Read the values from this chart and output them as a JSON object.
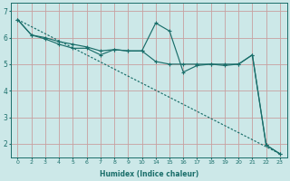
{
  "bg_color": "#cce8e8",
  "line_color": "#1a6e6a",
  "grid_color": "#c8a0a0",
  "xlabel": "Humidex (Indice chaleur)",
  "ylabel_ticks": [
    2,
    3,
    4,
    5,
    6,
    7
  ],
  "xtick_labels": [
    "0",
    "2",
    "3",
    "4",
    "5",
    "6",
    "7",
    "8",
    "9",
    "10",
    "14",
    "15",
    "16",
    "17",
    "18",
    "19",
    "20",
    "21",
    "22",
    "23"
  ],
  "xlim": [
    -0.5,
    19.5
  ],
  "ylim": [
    1.5,
    7.3
  ],
  "line1_x": [
    0,
    1,
    2,
    3,
    4,
    5,
    6,
    7,
    8,
    9,
    10,
    11,
    12,
    13,
    14,
    15,
    16,
    17,
    18,
    19
  ],
  "line1_y": [
    6.68,
    6.1,
    6.0,
    5.85,
    5.75,
    5.65,
    5.5,
    5.55,
    5.5,
    5.5,
    5.1,
    5.0,
    5.0,
    5.0,
    5.0,
    5.0,
    5.0,
    5.35,
    1.95,
    1.62
  ],
  "line2_x": [
    0,
    1,
    2,
    3,
    4,
    5,
    6,
    7,
    8,
    9,
    10,
    11,
    12,
    13,
    14,
    15,
    16,
    17,
    18,
    19
  ],
  "line2_y": [
    6.68,
    6.1,
    5.95,
    5.75,
    5.6,
    5.6,
    5.35,
    5.55,
    5.5,
    5.5,
    6.55,
    6.25,
    4.7,
    4.95,
    5.0,
    4.95,
    5.0,
    5.35,
    1.95,
    1.62
  ],
  "line3_x": [
    0,
    19
  ],
  "line3_y": [
    6.68,
    1.62
  ]
}
